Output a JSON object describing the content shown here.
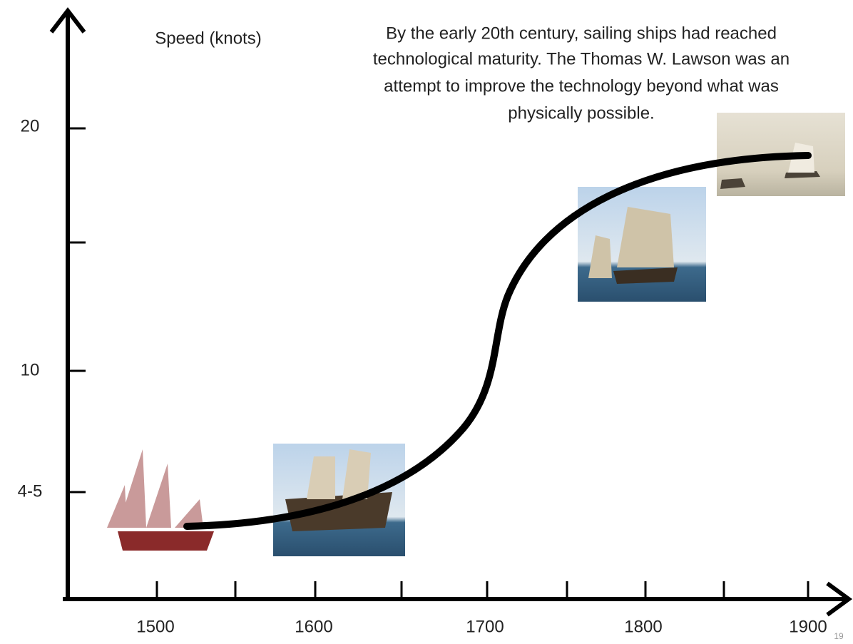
{
  "y_axis": {
    "title": "Speed (knots)",
    "labels": [
      "20",
      "10",
      "4-5"
    ]
  },
  "x_axis": {
    "labels": [
      "1500",
      "1600",
      "1700",
      "1800",
      "1900"
    ]
  },
  "annotation": [
    "By the early 20th century, sailing ships had reached",
    "technological maturity. The Thomas W. Lawson was an",
    "attempt to improve the technology beyond what was",
    "physically possible."
  ],
  "page_number": "19"
}
